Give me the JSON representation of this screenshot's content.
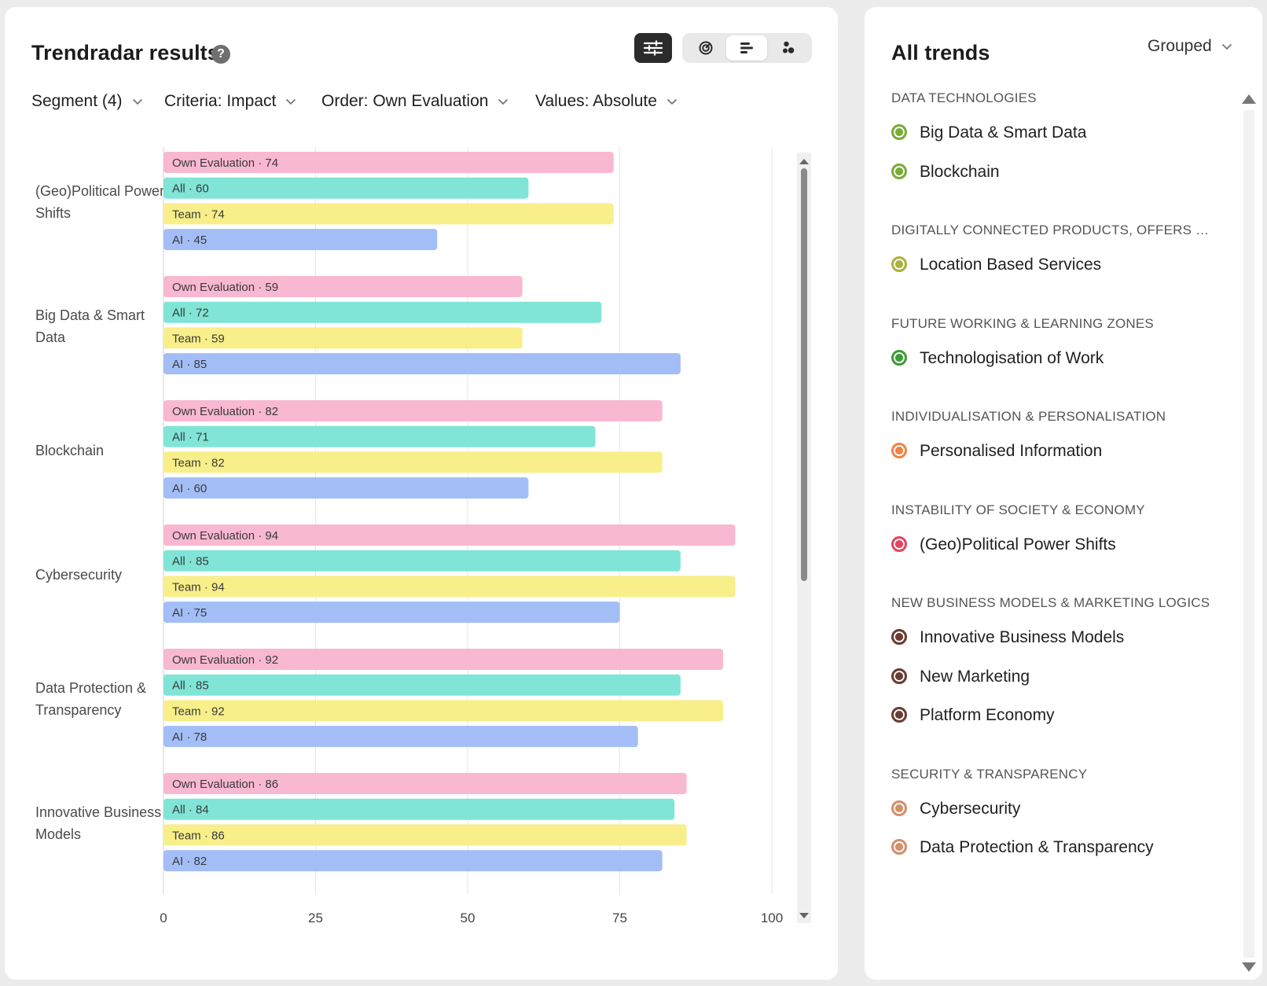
{
  "left_panel": {
    "title": "Trendradar results",
    "help_icon": "?",
    "filters": {
      "segment": "Segment (4)",
      "criteria": "Criteria: Impact",
      "order": "Order: Own Evaluation",
      "values": "Values: Absolute"
    },
    "view_toggle": {
      "settings_icon": "sliders-icon",
      "options": [
        "radar-view-icon",
        "bar-view-icon",
        "bubble-view-icon"
      ],
      "active": "bar-view-icon"
    }
  },
  "chart_data": {
    "type": "bar",
    "orientation": "horizontal",
    "title": "",
    "xlabel": "",
    "ylabel": "",
    "xlim": [
      0,
      100
    ],
    "x_ticks": [
      "0",
      "25",
      "50",
      "75",
      "100"
    ],
    "categories": [
      "(Geo)Political Power Shifts",
      "Big Data & Smart Data",
      "Blockchain",
      "Cybersecurity",
      "Data Protection & Transparency",
      "Innovative Business Models"
    ],
    "series": [
      {
        "name": "Own Evaluation",
        "color": "#f9b8d1",
        "values": [
          74,
          59,
          82,
          94,
          92,
          86
        ]
      },
      {
        "name": "All",
        "color": "#80e5d7",
        "values": [
          60,
          72,
          71,
          85,
          85,
          84
        ]
      },
      {
        "name": "Team",
        "color": "#f8ef8a",
        "values": [
          74,
          59,
          82,
          94,
          92,
          86
        ]
      },
      {
        "name": "AI",
        "color": "#a3bef6",
        "values": [
          45,
          85,
          60,
          75,
          78,
          82
        ]
      }
    ],
    "separator": " · "
  },
  "right_panel": {
    "title": "All trends",
    "grouping": "Grouped",
    "groups": [
      {
        "heading": "DATA TECHNOLOGIES",
        "trends": [
          {
            "name": "Big Data & Smart Data",
            "color": "#7aab3a"
          },
          {
            "name": "Blockchain",
            "color": "#7aab3a"
          }
        ]
      },
      {
        "heading": "DIGITALLY CONNECTED PRODUCTS, OFFERS & S...",
        "trends": [
          {
            "name": "Location Based Services",
            "color": "#a9b23c"
          }
        ]
      },
      {
        "heading": "FUTURE WORKING & LEARNING ZONES",
        "trends": [
          {
            "name": "Technologisation of Work",
            "color": "#3e9b3a"
          }
        ]
      },
      {
        "heading": "INDIVIDUALISATION & PERSONALISATION",
        "trends": [
          {
            "name": "Personalised Information",
            "color": "#ef8447"
          }
        ]
      },
      {
        "heading": "INSTABILITY OF SOCIETY & ECONOMY",
        "trends": [
          {
            "name": "(Geo)Political Power Shifts",
            "color": "#e3455f"
          }
        ]
      },
      {
        "heading": "NEW BUSINESS MODELS & MARKETING LOGICS",
        "trends": [
          {
            "name": "Innovative Business Models",
            "color": "#6b3c34"
          },
          {
            "name": "New Marketing",
            "color": "#6b3c34"
          },
          {
            "name": "Platform Economy",
            "color": "#6b3c34"
          }
        ]
      },
      {
        "heading": "SECURITY & TRANSPARENCY",
        "trends": [
          {
            "name": "Cybersecurity",
            "color": "#d38e6a"
          },
          {
            "name": "Data Protection & Transparency",
            "color": "#d38e6a"
          }
        ]
      }
    ]
  }
}
